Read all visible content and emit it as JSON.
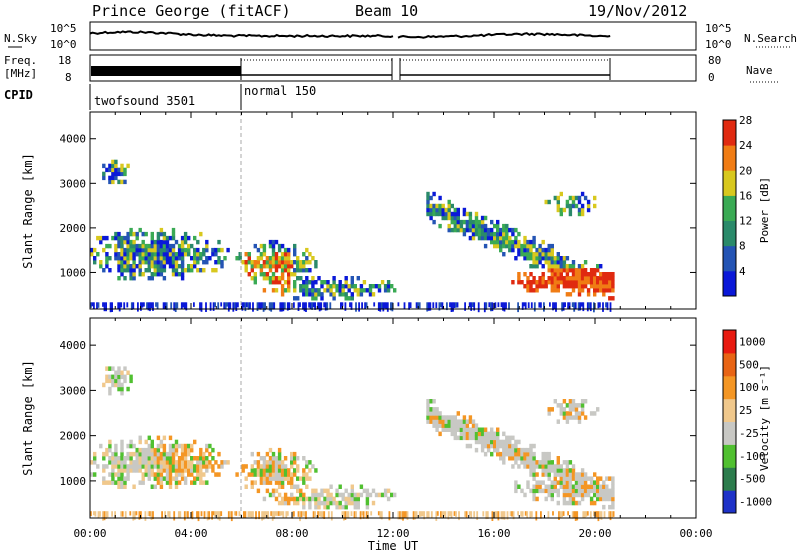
{
  "header": {
    "station": "Prince George (fitACF)",
    "beam": "Beam 10",
    "date": "19/Nov/2012"
  },
  "status_panels": {
    "nsky_label": "N.Sky",
    "nsky_ticks": [
      "10^5",
      "10^0"
    ],
    "nsearch_label": "N.Search",
    "nsearch_ticks": [
      "10^5",
      "10^0"
    ],
    "freq_label": "Freq.",
    "freq_unit": "[MHz]",
    "freq_ticks": [
      "18",
      "8"
    ],
    "nave_label": "Nave",
    "nave_ticks": [
      "80",
      "0"
    ],
    "cpid_label": "CPID",
    "modes": [
      {
        "name": "twofsound 3501",
        "start": 0,
        "end": 6
      },
      {
        "name": "normal 150",
        "start": 6,
        "end": 20.7
      }
    ]
  },
  "chart_data": [
    {
      "type": "heatmap",
      "name": "power",
      "ylabel": "Slant Range [km]",
      "xlabel": "Time UT",
      "xlim": [
        0,
        24
      ],
      "ylim": [
        180,
        4600
      ],
      "x_ticks": [
        "00:00",
        "04:00",
        "08:00",
        "12:00",
        "16:00",
        "20:00",
        "00:00"
      ],
      "y_ticks": [
        1000,
        2000,
        3000,
        4000
      ],
      "colorbar": {
        "label": "Power [dB]",
        "ticks": [
          4,
          8,
          12,
          16,
          20,
          24,
          28
        ],
        "colors": [
          "#0a18d8",
          "#2454b4",
          "#2a8a6a",
          "#3aaa54",
          "#d8c81e",
          "#f07c14",
          "#e02a10"
        ]
      },
      "data_gap": [
        12.0,
        12.15
      ]
    },
    {
      "type": "heatmap",
      "name": "velocity",
      "ylabel": "Slant Range [km]",
      "xlabel": "Time UT",
      "xlim": [
        0,
        24
      ],
      "ylim": [
        180,
        4600
      ],
      "x_ticks": [
        "00:00",
        "04:00",
        "08:00",
        "12:00",
        "16:00",
        "20:00",
        "00:00"
      ],
      "y_ticks": [
        1000,
        2000,
        3000,
        4000
      ],
      "colorbar": {
        "label": "Velocity [m s⁻¹]",
        "ticks": [
          "1000",
          "500",
          "100",
          "25",
          "-25",
          "-100",
          "-500",
          "-1000"
        ],
        "colors": [
          "#1e32c8",
          "#2c7c4c",
          "#50c030",
          "#c8c8c4",
          "#f0c88c",
          "#f49624",
          "#e86414",
          "#e81a10"
        ]
      },
      "data_gap": [
        12.0,
        12.15
      ]
    }
  ]
}
